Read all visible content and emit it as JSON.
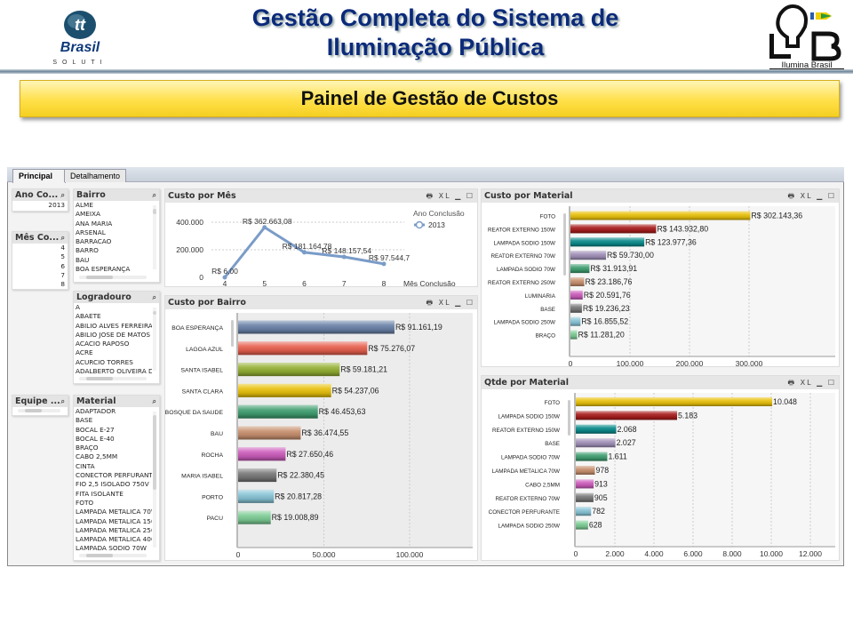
{
  "header": {
    "title_line1": "Gestão Completa do Sistema de",
    "title_line2": "Iluminação Pública",
    "left_logo_text": "Brasil",
    "left_logo_sub": "SOLUTI",
    "right_logo_text": "Ilumina Brasil"
  },
  "banner": {
    "title": "Painel de Gestão de Custos"
  },
  "tabs": [
    {
      "label": "Principal",
      "active": true
    },
    {
      "label": "Detalhamento",
      "active": false
    }
  ],
  "filters": {
    "ano": {
      "title": "Ano Co...",
      "items": [
        "2013"
      ]
    },
    "mes": {
      "title": "Mês Co...",
      "items": [
        "4",
        "5",
        "6",
        "7",
        "8"
      ]
    },
    "equipe": {
      "title": "Equipe ...",
      "items": []
    },
    "bairro": {
      "title": "Bairro",
      "items": [
        "ALME",
        "AMEIXA",
        "ANA MARIA",
        "ARSENAL",
        "BARRACAO",
        "BARRO",
        "BAU",
        "BOA ESPERANÇA"
      ]
    },
    "logradouro": {
      "title": "Logradouro",
      "items": [
        "A",
        "ABAETE",
        "ABILIO ALVES FERREIRA",
        "ABILIO JOSE DE MATOS",
        "ACACIO RAPOSO",
        "ACRE",
        "ACURCIO TORRES",
        "ADALBERTO OLIVEIRA DA"
      ]
    },
    "material": {
      "title": "Material",
      "items": [
        "ADAPTADOR",
        "BASE",
        "BOCAL E-27",
        "BOCAL E-40",
        "BRAÇO",
        "CABO 2,5MM",
        "CINTA",
        "CONECTOR PERFURANTE",
        "FIO 2,5 ISOLADO 750V",
        "FITA ISOLANTE",
        "FOTO",
        "LAMPADA METALICA 70W",
        "LAMPADA METALICA 150\\",
        "LAMPADA METALICA 250\\",
        "LAMPADA METALICA 400\\",
        "LAMPADA SODIO 70W"
      ]
    }
  },
  "panel_controls": "🖶 XL ▁ ☐",
  "search_icon": "⌕",
  "chart_data": [
    {
      "id": "mes",
      "type": "line",
      "title": "Custo por Mês",
      "xlabel": "Mês Conclusão",
      "ylabel": "",
      "legend_title": "Ano Conclusão",
      "legend": "top-right",
      "series": [
        {
          "name": "2013",
          "x": [
            4,
            5,
            6,
            7,
            8
          ],
          "values": [
            6.0,
            362663.08,
            181164.78,
            148157.54,
            97544.7
          ],
          "labels": [
            "R$ 6,00",
            "R$ 362.663,08",
            "R$ 181.164,78",
            "R$ 148.157,54",
            "R$ 97.544,7"
          ]
        }
      ],
      "ylim": [
        0,
        400000
      ],
      "yticks": [
        "0",
        "200.000",
        "400.000"
      ],
      "ytick_values": [
        0,
        200000,
        400000
      ],
      "color": "#7a9cc8"
    },
    {
      "id": "bairro",
      "type": "bar",
      "orientation": "horizontal",
      "title": "Custo por Bairro",
      "categories": [
        "BOA ESPERANÇA",
        "LAGOA AZUL",
        "SANTA ISABEL",
        "SANTA CLARA",
        "BOSQUE DA SAUDE",
        "BAU",
        "ROCHA",
        "MARIA ISABEL",
        "PORTO",
        "PACU"
      ],
      "values": [
        91161.19,
        75276.07,
        59181.21,
        54237.06,
        46453.63,
        36474.55,
        27650.46,
        22380.45,
        20817.28,
        19008.89
      ],
      "labels": [
        "R$ 91.161,19",
        "R$ 75.276,07",
        "R$ 59.181,21",
        "R$ 54.237,06",
        "R$ 46.453,63",
        "R$ 36.474,55",
        "R$ 27.650,46",
        "R$ 22.380,45",
        "R$ 20.817,28",
        "R$ 19.008,89"
      ],
      "xticks": [
        "0",
        "50.000",
        "100.000"
      ],
      "xtick_values": [
        0,
        50000,
        100000
      ],
      "colors": [
        "#6a82a8",
        "#e8604e",
        "#94b032",
        "#e8c10a",
        "#3f9e70",
        "#c8906e",
        "#cc5cbc",
        "#787878",
        "#88c4d6",
        "#7ccc94"
      ]
    },
    {
      "id": "material",
      "type": "bar",
      "orientation": "horizontal",
      "title": "Custo por Material",
      "categories": [
        "FOTO",
        "REATOR EXTERNO 150W",
        "LAMPADA SODIO 150W",
        "REATOR EXTERNO 70W",
        "LAMPADA SODIO 70W",
        "REATOR EXTERNO 250W",
        "LUMINARIA",
        "BASE",
        "LAMPADA SODIO 250W",
        "BRAÇO"
      ],
      "values": [
        302143.36,
        143932.8,
        123977.36,
        59730.0,
        31913.91,
        23186.76,
        20591.76,
        19236.23,
        16855.52,
        11281.2
      ],
      "labels": [
        "R$ 302.143,36",
        "R$ 143.932,80",
        "R$ 123.977,36",
        "R$ 59.730,00",
        "R$ 31.913,91",
        "R$ 23.186,76",
        "R$ 20.591,76",
        "R$ 19.236,23",
        "R$ 16.855,52",
        "R$ 11.281,20"
      ],
      "xticks": [
        "0",
        "100.000",
        "200.000",
        "300.000"
      ],
      "xtick_values": [
        0,
        100000,
        200000,
        300000
      ],
      "colors": [
        "#e8c10a",
        "#a81c1c",
        "#0a8a8a",
        "#a090b8",
        "#3f9e70",
        "#c8906e",
        "#cc5cbc",
        "#787878",
        "#88c4d6",
        "#7ccc94"
      ]
    },
    {
      "id": "qtde",
      "type": "bar",
      "orientation": "horizontal",
      "title": "Qtde por Material",
      "categories": [
        "FOTO",
        "LAMPADA SODIO 150W",
        "REATOR EXTERNO 150W",
        "BASE",
        "LAMPADA SODIO 70W",
        "LAMPADA METALICA 70W",
        "CABO 2,5MM",
        "REATOR EXTERNO 70W",
        "CONECTOR PERFURANTE",
        "LAMPADA SODIO 250W"
      ],
      "values": [
        10048,
        5183,
        2068,
        2027,
        1611,
        978,
        913,
        905,
        782,
        628
      ],
      "labels": [
        "10.048",
        "5.183",
        "2.068",
        "2.027",
        "1.611",
        "978",
        "913",
        "905",
        "782",
        "628"
      ],
      "xticks": [
        "0",
        "2.000",
        "4.000",
        "6.000",
        "8.000",
        "10.000",
        "12.000"
      ],
      "xtick_values": [
        0,
        2000,
        4000,
        6000,
        8000,
        10000,
        12000
      ],
      "colors": [
        "#e8c10a",
        "#a81c1c",
        "#0a8a8a",
        "#a090b8",
        "#3f9e70",
        "#c8906e",
        "#cc5cbc",
        "#787878",
        "#88c4d6",
        "#7ccc94"
      ]
    }
  ]
}
